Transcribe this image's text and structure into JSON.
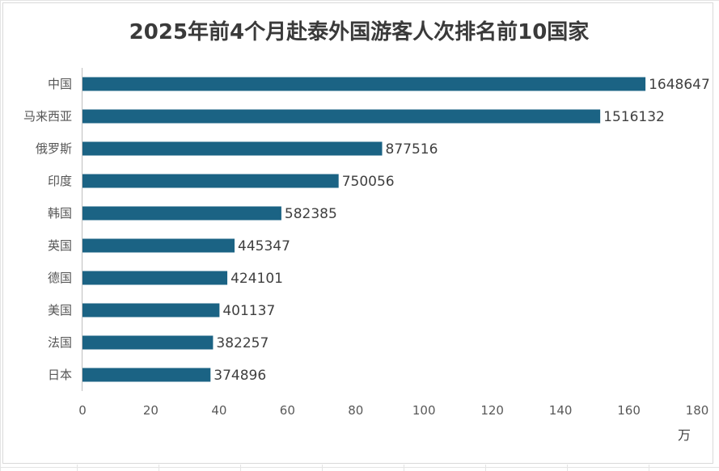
{
  "chart_data": {
    "type": "bar",
    "orientation": "horizontal",
    "title": "2025年前4个月赴泰外国游客人次排名前10国家",
    "categories": [
      "中国",
      "马来西亚",
      "俄罗斯",
      "印度",
      "韩国",
      "英国",
      "德国",
      "美国",
      "法国",
      "日本"
    ],
    "values": [
      1648647,
      1516132,
      877516,
      750056,
      582385,
      445347,
      424101,
      401137,
      382257,
      374896
    ],
    "axis_ticks": [
      "0",
      "20",
      "40",
      "60",
      "80",
      "100",
      "120",
      "140",
      "160",
      "180"
    ],
    "xlim": [
      0,
      180
    ],
    "axis_unit": "万",
    "grid": false,
    "legend": "none",
    "bar_color": "#1b6384"
  }
}
